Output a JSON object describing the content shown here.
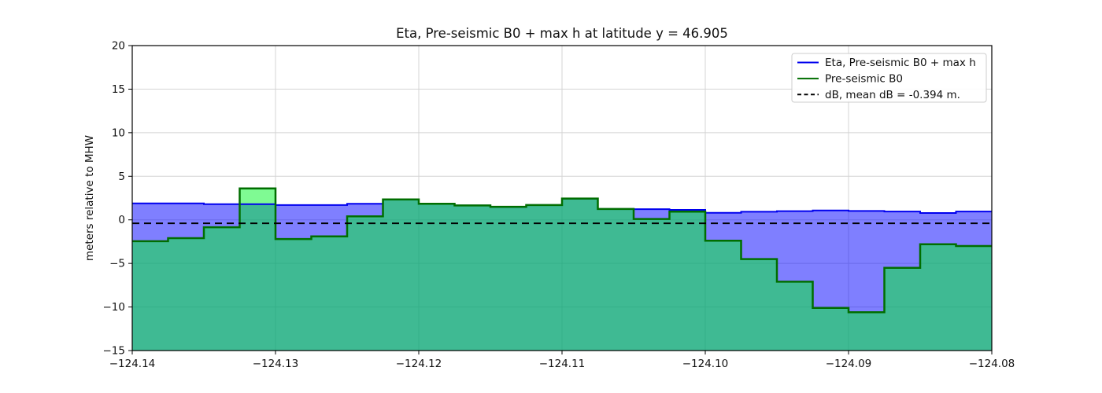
{
  "chart_data": {
    "type": "area",
    "subtype": "step-filled-line",
    "title": "Eta, Pre-seismic B0 + max h at latitude y = 46.905",
    "xlabel": "",
    "ylabel": "meters relative to MHW",
    "xlim": [
      -124.14,
      -124.08
    ],
    "ylim": [
      -15,
      20
    ],
    "grid": true,
    "grid_color": "#d4d4d4",
    "background_color": "#ffffff",
    "legend_position": "upper right",
    "x_ticks": [
      {
        "v": -124.14,
        "label": "−124.14"
      },
      {
        "v": -124.13,
        "label": "−124.13"
      },
      {
        "v": -124.12,
        "label": "−124.12"
      },
      {
        "v": -124.11,
        "label": "−124.11"
      },
      {
        "v": -124.1,
        "label": "−124.10"
      },
      {
        "v": -124.09,
        "label": "−124.09"
      },
      {
        "v": -124.08,
        "label": "−124.08"
      }
    ],
    "y_ticks": [
      {
        "v": 20,
        "label": "20"
      },
      {
        "v": 15,
        "label": "15"
      },
      {
        "v": 10,
        "label": "10"
      },
      {
        "v": 5,
        "label": "5"
      },
      {
        "v": 0,
        "label": "0"
      },
      {
        "v": -5,
        "label": "−5"
      },
      {
        "v": -10,
        "label": "−10"
      },
      {
        "v": -15,
        "label": "−15"
      }
    ],
    "step_edges_deg": [
      -124.14,
      -124.1375,
      -124.135,
      -124.1325,
      -124.13,
      -124.1275,
      -124.125,
      -124.1225,
      -124.12,
      -124.1175,
      -124.115,
      -124.1125,
      -124.11,
      -124.1075,
      -124.105,
      -124.1025,
      -124.1,
      -124.0975,
      -124.095,
      -124.0925,
      -124.09,
      -124.0875,
      -124.085,
      -124.0825,
      -124.08
    ],
    "series": [
      {
        "name": "Eta, Pre-seismic B0 + max h",
        "render": "step",
        "line_color": "#0000ee",
        "fill_color": "rgba(0,0,255,0.5)",
        "line_width": 2,
        "values": [
          1.9,
          1.9,
          1.8,
          1.8,
          1.7,
          1.7,
          1.85,
          2.35,
          1.85,
          1.65,
          1.5,
          1.7,
          2.45,
          1.25,
          1.23,
          1.15,
          0.8,
          0.93,
          1.0,
          1.08,
          1.02,
          0.96,
          0.79,
          0.96
        ]
      },
      {
        "name": "Pre-seismic B0",
        "render": "step",
        "line_color": "#006e00",
        "fill_color": "rgba(0,245,40,0.5)",
        "line_width": 2.5,
        "values": [
          -2.45,
          -2.1,
          -0.85,
          3.6,
          -2.2,
          -1.9,
          0.4,
          2.35,
          1.85,
          1.65,
          1.5,
          1.7,
          2.45,
          1.25,
          0.1,
          0.95,
          -2.4,
          -4.5,
          -7.1,
          -10.1,
          -10.6,
          -5.5,
          -2.8,
          -3.0
        ]
      },
      {
        "name": "dB, mean dB = -0.394 m.",
        "render": "hline",
        "line_color": "#000000",
        "dash": true,
        "line_width": 2,
        "value": -0.394
      }
    ],
    "legend": [
      {
        "label": "Eta, Pre-seismic B0 + max h",
        "color": "#0000ee",
        "dash": false
      },
      {
        "label": "Pre-seismic B0",
        "color": "#006e00",
        "dash": false
      },
      {
        "label": "dB, mean dB = -0.394 m.",
        "color": "#000000",
        "dash": true
      }
    ]
  }
}
